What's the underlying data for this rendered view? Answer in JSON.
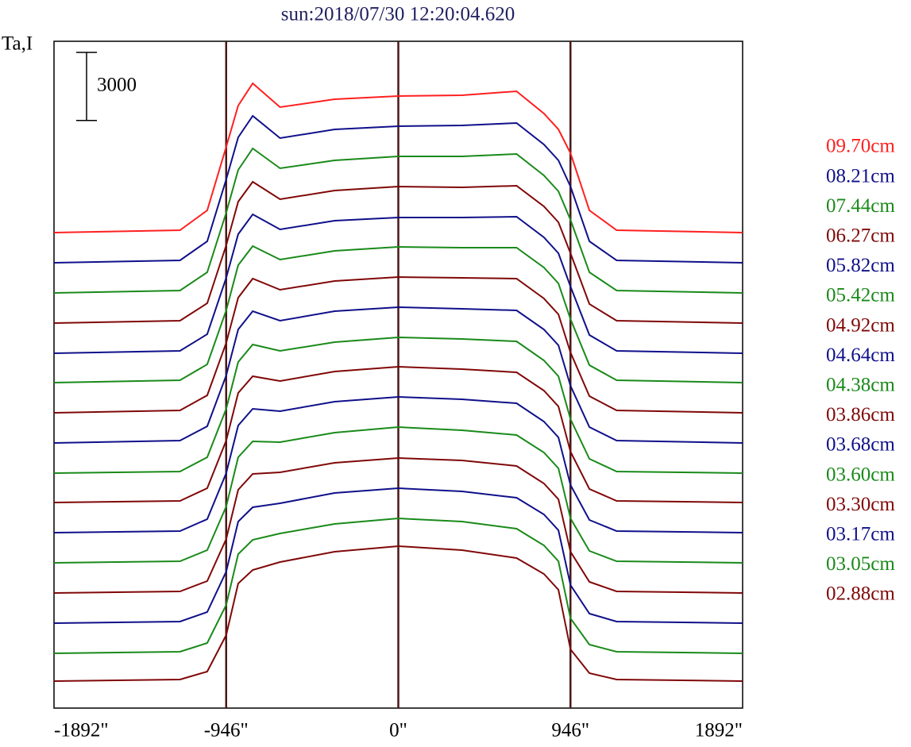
{
  "chart_data": {
    "type": "line",
    "title": "sun:2018/07/30 12:20:04.620",
    "y_label": "Ta,I",
    "scale_bar": 3000,
    "x": [
      -1892,
      -1200,
      -1050,
      -946,
      -880,
      -800,
      -650,
      -350,
      0,
      350,
      650,
      800,
      880,
      946,
      1050,
      1200,
      1892
    ],
    "xlim": [
      -1892,
      1892
    ],
    "xticks": [
      {
        "value": -1892,
        "label": "-1892\""
      },
      {
        "value": -946,
        "label": "-946\""
      },
      {
        "value": 0,
        "label": "0\""
      },
      {
        "value": 946,
        "label": "946\""
      },
      {
        "value": 1892,
        "label": "1892\""
      }
    ],
    "ylim": [
      0,
      29400
    ],
    "series": [
      {
        "name": "09.70cm",
        "color": "#ff2020",
        "values": [
          20965,
          21070,
          21945,
          24745,
          26565,
          27545,
          26495,
          26845,
          26985,
          27020,
          27195,
          26215,
          25515,
          24465,
          21945,
          21070,
          20965
        ]
      },
      {
        "name": "08.21cm",
        "color": "#10108a",
        "values": [
          19635,
          19740,
          20580,
          23310,
          25165,
          26110,
          25130,
          25515,
          25655,
          25690,
          25795,
          24850,
          24150,
          22995,
          20580,
          19740,
          19635
        ]
      },
      {
        "name": "07.44cm",
        "color": "#1a8a1a",
        "values": [
          18305,
          18410,
          19215,
          21840,
          23730,
          24675,
          23800,
          24150,
          24325,
          24325,
          24430,
          23485,
          22785,
          21525,
          19215,
          18410,
          18305
        ]
      },
      {
        "name": "06.27cm",
        "color": "#800808",
        "values": [
          16975,
          17080,
          17850,
          20405,
          22330,
          23205,
          22435,
          22820,
          22995,
          22960,
          23030,
          22120,
          21420,
          20055,
          17815,
          17080,
          16975
        ]
      },
      {
        "name": "05.82cm",
        "color": "#10108a",
        "values": [
          15645,
          15750,
          16485,
          18970,
          20895,
          21770,
          21105,
          21490,
          21630,
          21630,
          21665,
          20755,
          20055,
          18585,
          16450,
          15750,
          15645
        ]
      },
      {
        "name": "05.42cm",
        "color": "#1a8a1a",
        "values": [
          14350,
          14455,
          15155,
          17535,
          19530,
          20370,
          19775,
          20160,
          20335,
          20300,
          20300,
          19425,
          18725,
          17150,
          15120,
          14455,
          14350
        ]
      },
      {
        "name": "04.92cm",
        "color": "#800808",
        "values": [
          13020,
          13125,
          13790,
          16100,
          18095,
          18935,
          18445,
          18830,
          19005,
          18970,
          18935,
          18060,
          17360,
          15680,
          13755,
          13125,
          13020
        ]
      },
      {
        "name": "04.64cm",
        "color": "#10108a",
        "values": [
          11690,
          11795,
          12425,
          14665,
          16695,
          17500,
          17080,
          17500,
          17675,
          17605,
          17535,
          16695,
          15995,
          14210,
          12390,
          11795,
          11690
        ]
      },
      {
        "name": "04.38cm",
        "color": "#1a8a1a",
        "values": [
          10360,
          10430,
          11060,
          13195,
          15260,
          16030,
          15750,
          16135,
          16345,
          16275,
          16170,
          15330,
          14630,
          12740,
          10990,
          10430,
          10360
        ]
      },
      {
        "name": "03.86cm",
        "color": "#800808",
        "values": [
          9065,
          9135,
          9695,
          11795,
          13895,
          14630,
          14420,
          14840,
          15050,
          14945,
          14805,
          14000,
          13300,
          11305,
          9660,
          9135,
          9065
        ]
      },
      {
        "name": "03.68cm",
        "color": "#10108a",
        "values": [
          7735,
          7805,
          8330,
          10360,
          12460,
          13195,
          13090,
          13510,
          13720,
          13615,
          13440,
          12635,
          11935,
          9835,
          8295,
          7805,
          7735
        ]
      },
      {
        "name": "03.60cm",
        "color": "#1a8a1a",
        "values": [
          6405,
          6475,
          6965,
          8890,
          11060,
          11760,
          11725,
          12145,
          12390,
          12250,
          12040,
          11270,
          10570,
          8365,
          6930,
          6475,
          6405
        ]
      },
      {
        "name": "03.30cm",
        "color": "#800808",
        "values": [
          5075,
          5145,
          5600,
          7455,
          9625,
          10325,
          10395,
          10815,
          11025,
          10920,
          10675,
          9905,
          9205,
          6895,
          5565,
          5145,
          5075
        ]
      },
      {
        "name": "03.17cm",
        "color": "#10108a",
        "values": [
          3745,
          3815,
          4235,
          6020,
          8225,
          8855,
          9030,
          9485,
          9695,
          9555,
          9275,
          8540,
          7840,
          5425,
          4165,
          3815,
          3745
        ]
      },
      {
        "name": "03.05cm",
        "color": "#1a8a1a",
        "values": [
          2415,
          2485,
          2870,
          4550,
          6790,
          7420,
          7700,
          8120,
          8365,
          8225,
          7910,
          7175,
          6475,
          3955,
          2800,
          2485,
          2415
        ]
      },
      {
        "name": "02.88cm",
        "color": "#800808",
        "values": [
          1190,
          1260,
          1610,
          3220,
          5495,
          6090,
          6440,
          6895,
          7140,
          6965,
          6615,
          5915,
          5215,
          2590,
          1540,
          1260,
          1190
        ]
      }
    ]
  }
}
